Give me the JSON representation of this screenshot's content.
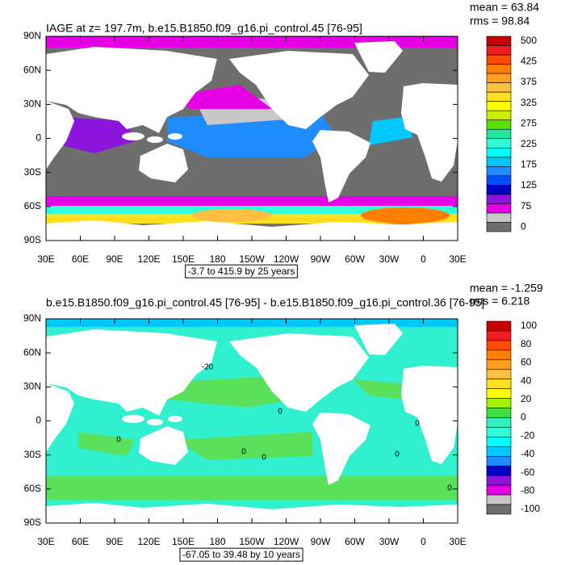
{
  "panels": [
    {
      "title": "IAGE at z= 197.7m, b.e15.B1850.f09_g16.pi_control.45 [76-95]",
      "stats": [
        "mean = 63.84",
        "rms = 98.84"
      ],
      "range_note": "-3.7 to 415.9 by 25 years",
      "colorbar_labels": [
        500,
        425,
        375,
        325,
        275,
        225,
        175,
        125,
        75,
        0
      ],
      "colorbar_colors": [
        "#c80000",
        "#ee1c1c",
        "#ff4b00",
        "#ff7f00",
        "#ff9f20",
        "#ffbf40",
        "#ffdf20",
        "#ffff00",
        "#c8f000",
        "#5ae000",
        "#20e8a0",
        "#30ffd8",
        "#00ffff",
        "#00c8ff",
        "#1e8cff",
        "#0050ff",
        "#0000c8",
        "#8c14dc",
        "#e600e6",
        "#c8c8c8",
        "#6e6e6e"
      ]
    },
    {
      "title": "b.e15.B1850.f09_g16.pi_control.45 [76-95] - b.e15.B1850.f09_g16.pi_control.36 [76-95]",
      "stats": [
        "mean = -1.259",
        "rms = 6.218"
      ],
      "range_note": "-67.05 to 39.48 by 10 years",
      "colorbar_labels": [
        100,
        80,
        60,
        40,
        20,
        0,
        -20,
        -40,
        -60,
        -80,
        -100
      ],
      "colorbar_colors": [
        "#c80000",
        "#ee1c1c",
        "#ff4b00",
        "#ff7f00",
        "#ff9f20",
        "#ffbf40",
        "#ffdf20",
        "#ffff00",
        "#a0f000",
        "#40e040",
        "#30f0c0",
        "#30ffd8",
        "#00ffff",
        "#00c8ff",
        "#1e8cff",
        "#0000c8",
        "#8c14dc",
        "#e600e6",
        "#c8c8c8",
        "#6e6e6e"
      ],
      "contour_labels": [
        "-20",
        "0",
        "0",
        "0",
        "0",
        "0",
        "0",
        "0"
      ]
    }
  ],
  "lat_labels": [
    "90N",
    "60N",
    "30N",
    "0",
    "30S",
    "60S",
    "90S"
  ],
  "lon_labels": [
    "30E",
    "60E",
    "90E",
    "120E",
    "150E",
    "180",
    "150W",
    "120W",
    "90W",
    "60W",
    "30W",
    "0",
    "30E"
  ]
}
